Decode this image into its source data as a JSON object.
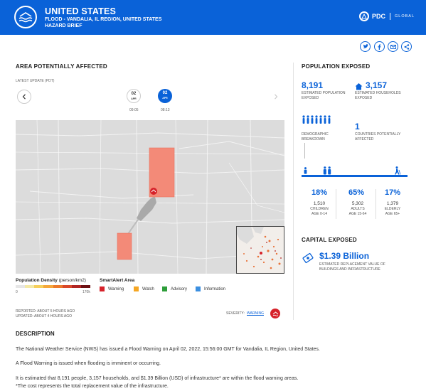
{
  "header": {
    "title": "UNITED STATES",
    "subtitle": "FLOOD - VANDALIA, IL REGION, UNITED STATES",
    "subtitle2": "HAZARD BRIEF",
    "logo_icon": "flood-hazard-icon",
    "brand": "PDC",
    "brand_suffix": "GLOBAL",
    "color": "#0a62d8"
  },
  "share": [
    "twitter-icon",
    "facebook-icon",
    "email-icon",
    "share-icon"
  ],
  "area": {
    "title": "AREA POTENTIALLY AFFECTED",
    "latest_label": "LATEST UPDATE (PDT)",
    "dates": [
      {
        "day": "02",
        "month": "APR",
        "time": "09:05",
        "selected": false
      },
      {
        "day": "02",
        "month": "APR",
        "time": "08:13",
        "selected": true
      }
    ],
    "prev_icon": "chevron-left-icon",
    "next_icon": "chevron-right-icon"
  },
  "legend": {
    "density_title": "Population Density",
    "density_unit": "(person/km2)",
    "density_min": "0",
    "density_max": "170k",
    "density_colors": [
      "#e6e6e6",
      "#f4e9a6",
      "#f6cf5c",
      "#f5a73b",
      "#ec7a2c",
      "#d9482a",
      "#b02523",
      "#6d1012"
    ],
    "alert_title": "SmartAlert Area",
    "alerts": [
      {
        "label": "Warning",
        "color": "#d6222a"
      },
      {
        "label": "Watch",
        "color": "#f5a623"
      },
      {
        "label": "Advisory",
        "color": "#2e9e3a"
      },
      {
        "label": "Information",
        "color": "#3b8fe0"
      }
    ]
  },
  "report": {
    "reported": "REPORTED: ABOUT 5 HOURS AGO",
    "updated": "UPDATED: ABOUT 4 HOURS AGO",
    "severity_label": "SEVERITY:",
    "severity_value": "WARNING"
  },
  "population": {
    "title": "POPULATION EXPOSED",
    "people": "8,191",
    "people_label": "ESTIMATED POPULATION EXPOSED",
    "households": "3,157",
    "households_label": "ESTIMATED HOUSEHOLDS EXPOSED",
    "demographic_label": "DEMOGRAPHIC BREAKDOWN",
    "countries": "1",
    "countries_label": "COUNTRIES POTENTIALLY AFFECTED",
    "groups": [
      {
        "pct": "18%",
        "count": "1,510",
        "name": "CHILDREN",
        "age": "AGE 0-14"
      },
      {
        "pct": "65%",
        "count": "5,302",
        "name": "ADULTS",
        "age": "AGE 15-64"
      },
      {
        "pct": "17%",
        "count": "1,379",
        "name": "ELDERLY",
        "age": "AGE 65+"
      }
    ]
  },
  "capital": {
    "title": "CAPITAL EXPOSED",
    "value": "$1.39 Billion",
    "label": "ESTIMATED REPLACEMENT VALUE OF BUILDINGS AND INFRASTRUCTURE"
  },
  "description": {
    "title": "DESCRIPTION",
    "lines": [
      "The National Weather Service (NWS) has issued a Flood Warning on April 02, 2022, 15:56:00 GMT for Vandalia, IL Region, United States.",
      "A Flood Warning is issued when flooding is imminent or occurring.",
      "It is estimated that 8,191 people, 3,157 households, and $1.39 Billion (USD) of infrastructure* are within the flood warning areas.",
      "*The cost represents the total replacement value of the infrastructure."
    ]
  }
}
